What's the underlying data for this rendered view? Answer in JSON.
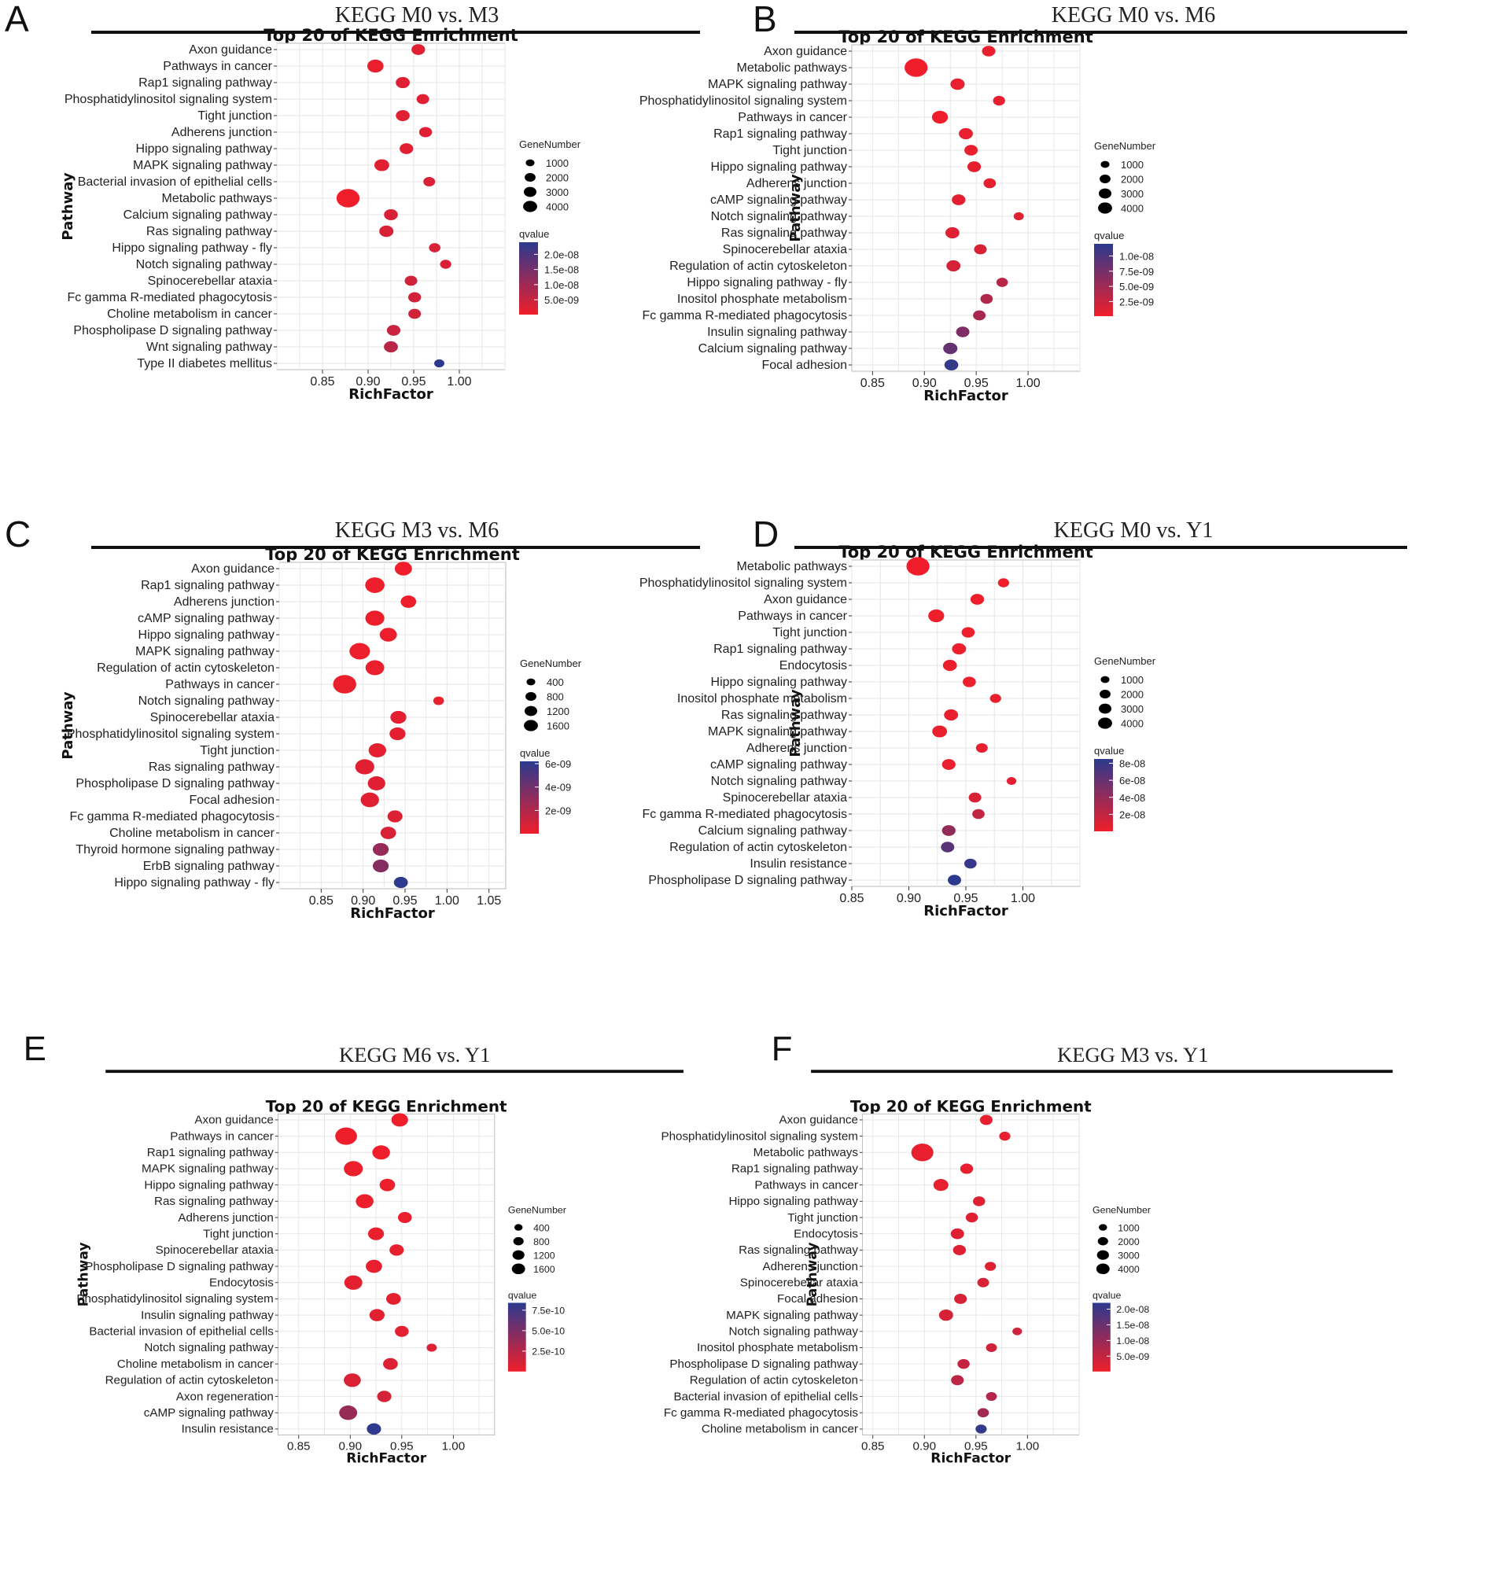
{
  "colors": {
    "low_q": "#f01e2a",
    "high_q": "#2b3a8f",
    "grid": "#e6e6e6",
    "rule": "#111111"
  },
  "common": {
    "pathway_label": "Pathway",
    "x_label": "RichFactor",
    "size_legend_title": "GeneNumber",
    "color_legend_title": "qvalue"
  },
  "chart_data": [
    {
      "panel": "A",
      "type": "scatter",
      "heading": "KEGG  M0 vs. M3",
      "title": "Top 20 of KEGG Enrichment",
      "xlabel": "RichFactor",
      "ylabel": "Pathway",
      "xlim": [
        0.8,
        1.05
      ],
      "xticks": [
        "0.85",
        "0.90",
        "0.95",
        "1.00"
      ],
      "xtick_values": [
        0.85,
        0.9,
        0.95,
        1.0
      ],
      "size_legend": {
        "labels": [
          "1000",
          "2000",
          "3000",
          "4000"
        ],
        "values": [
          1000,
          2000,
          3000,
          4000
        ]
      },
      "color_legend": {
        "labels": [
          "2.0e-08",
          "1.5e-08",
          "1.0e-08",
          "5.0e-09"
        ],
        "values": [
          2e-08,
          1.5e-08,
          1e-08,
          5e-09
        ],
        "min": 1e-10,
        "max": 2.4e-08
      },
      "pathways": [
        "Axon guidance",
        "Pathways in cancer",
        "Rap1 signaling pathway",
        "Phosphatidylinositol signaling system",
        "Tight junction",
        "Adherens junction",
        "Hippo signaling pathway",
        "MAPK signaling pathway",
        "Bacterial invasion of epithelial cells",
        "Metabolic pathways",
        "Calcium signaling pathway",
        "Ras signaling pathway",
        "Hippo signaling pathway - fly",
        "Notch signaling pathway",
        "Spinocerebellar ataxia",
        "Fc gamma R-mediated phagocytosis",
        "Choline metabolism in cancer",
        "Phospholipase D signaling pathway",
        "Wnt signaling pathway",
        "Type II diabetes mellitus"
      ],
      "rich_factor": [
        0.955,
        0.908,
        0.938,
        0.96,
        0.938,
        0.963,
        0.942,
        0.915,
        0.967,
        0.878,
        0.925,
        0.92,
        0.973,
        0.985,
        0.947,
        0.951,
        0.951,
        0.928,
        0.925,
        0.978
      ],
      "gene_number": [
        900,
        1600,
        1000,
        700,
        950,
        750,
        900,
        1200,
        550,
        4200,
        950,
        1050,
        500,
        450,
        700,
        750,
        700,
        900,
        1000,
        300
      ],
      "qvalue": [
        2e-09,
        1e-09,
        2e-09,
        2e-09,
        2e-09,
        2e-09,
        2e-09,
        2e-09,
        3e-09,
        1e-10,
        3e-09,
        3e-09,
        3e-09,
        3e-09,
        4e-09,
        4e-09,
        4e-09,
        5e-09,
        7e-09,
        2.4e-08
      ]
    },
    {
      "panel": "B",
      "type": "scatter",
      "heading": "KEGG  M0 vs. M6",
      "title": "Top 20 of KEGG Enrichment",
      "xlabel": "RichFactor",
      "ylabel": "Pathway",
      "xlim": [
        0.83,
        1.05
      ],
      "xticks": [
        "0.85",
        "0.90",
        "0.95",
        "1.00"
      ],
      "xtick_values": [
        0.85,
        0.9,
        0.95,
        1.0
      ],
      "size_legend": {
        "labels": [
          "1000",
          "2000",
          "3000",
          "4000"
        ],
        "values": [
          1000,
          2000,
          3000,
          4000
        ]
      },
      "color_legend": {
        "labels": [
          "1.0e-08",
          "7.5e-09",
          "5.0e-09",
          "2.5e-09"
        ],
        "values": [
          1e-08,
          7.5e-09,
          5e-09,
          2.5e-09
        ],
        "min": 1e-10,
        "max": 1.2e-08
      },
      "pathways": [
        "Axon guidance",
        "Metabolic pathways",
        "MAPK signaling pathway",
        "Phosphatidylinositol signaling system",
        "Pathways in cancer",
        "Rap1 signaling pathway",
        "Tight junction",
        "Hippo signaling pathway",
        "Adherens junction",
        "cAMP signaling pathway",
        "Notch signaling pathway",
        "Ras signaling pathway",
        "Spinocerebellar ataxia",
        "Regulation of actin cytoskeleton",
        "Hippo signaling pathway - fly",
        "Inositol phosphate metabolism",
        "Fc gamma R-mediated phagocytosis",
        "Insulin signaling pathway",
        "Calcium signaling pathway",
        "Focal adhesion"
      ],
      "rich_factor": [
        0.962,
        0.892,
        0.932,
        0.972,
        0.915,
        0.94,
        0.945,
        0.948,
        0.963,
        0.933,
        0.991,
        0.927,
        0.954,
        0.928,
        0.975,
        0.96,
        0.953,
        0.937,
        0.925,
        0.926
      ],
      "gene_number": [
        850,
        4200,
        1050,
        600,
        1500,
        1000,
        850,
        900,
        650,
        900,
        300,
        1000,
        700,
        1000,
        500,
        650,
        700,
        850,
        1050,
        950
      ],
      "qvalue": [
        5e-10,
        1e-10,
        6e-10,
        6e-10,
        1e-10,
        6e-10,
        6e-10,
        8e-10,
        8e-10,
        9e-10,
        1.2e-09,
        1.2e-09,
        1.5e-09,
        1.8e-09,
        3.5e-09,
        4e-09,
        4.5e-09,
        7e-09,
        8.5e-09,
        1.15e-08
      ]
    },
    {
      "panel": "C",
      "type": "scatter",
      "heading": "KEGG  M3 vs. M6",
      "title": "Top 20 of KEGG Enrichment",
      "xlabel": "RichFactor",
      "ylabel": "Pathway",
      "xlim": [
        0.8,
        1.07
      ],
      "xticks": [
        "0.85",
        "0.90",
        "0.95",
        "1.00",
        "1.05"
      ],
      "xtick_values": [
        0.85,
        0.9,
        0.95,
        1.0,
        1.05
      ],
      "size_legend": {
        "labels": [
          "400",
          "800",
          "1200",
          "1600"
        ],
        "values": [
          400,
          800,
          1200,
          1600
        ]
      },
      "color_legend": {
        "labels": [
          "6e-09",
          "4e-09",
          "2e-09"
        ],
        "values": [
          6e-09,
          4e-09,
          2e-09
        ],
        "min": 1e-11,
        "max": 6.2e-09
      },
      "pathways": [
        "Axon guidance",
        "Rap1 signaling pathway",
        "Adherens junction",
        "cAMP signaling pathway",
        "Hippo signaling pathway",
        "MAPK signaling pathway",
        "Regulation of actin cytoskeleton",
        "Pathways in cancer",
        "Notch signaling pathway",
        "Spinocerebellar ataxia",
        "Phosphatidylinositol signaling system",
        "Tight junction",
        "Ras signaling pathway",
        "Phospholipase D signaling pathway",
        "Focal adhesion",
        "Fc gamma R-mediated phagocytosis",
        "Choline metabolism in cancer",
        "Thyroid hormone signaling pathway",
        "ErbB signaling pathway",
        "Hippo signaling pathway - fly"
      ],
      "rich_factor": [
        0.948,
        0.914,
        0.954,
        0.914,
        0.93,
        0.896,
        0.914,
        0.878,
        0.99,
        0.942,
        0.941,
        0.917,
        0.902,
        0.916,
        0.908,
        0.938,
        0.93,
        0.921,
        0.921,
        0.945
      ],
      "gene_number": [
        750,
        1050,
        550,
        1000,
        750,
        1250,
        950,
        1700,
        150,
        600,
        600,
        800,
        1000,
        800,
        900,
        500,
        550,
        600,
        600,
        400
      ],
      "qvalue": [
        3e-11,
        5e-11,
        1e-10,
        1e-10,
        1e-10,
        1e-10,
        2e-10,
        2e-10,
        3e-10,
        4e-10,
        4e-10,
        4e-10,
        5e-10,
        5e-10,
        5e-10,
        6e-10,
        8e-10,
        2.8e-09,
        3.4e-09,
        6.1e-09
      ]
    },
    {
      "panel": "D",
      "type": "scatter",
      "heading": "KEGG  M0 vs. Y1",
      "title": "Top 20 of KEGG Enrichment",
      "xlabel": "RichFactor",
      "ylabel": "Pathway",
      "xlim": [
        0.85,
        1.05
      ],
      "xticks": [
        "0.85",
        "0.90",
        "0.95",
        "1.00"
      ],
      "xtick_values": [
        0.85,
        0.9,
        0.95,
        1.0
      ],
      "size_legend": {
        "labels": [
          "1000",
          "2000",
          "3000",
          "4000"
        ],
        "values": [
          1000,
          2000,
          3000,
          4000
        ]
      },
      "color_legend": {
        "labels": [
          "8e-08",
          "6e-08",
          "4e-08",
          "2e-08"
        ],
        "values": [
          8e-08,
          6e-08,
          4e-08,
          2e-08
        ],
        "min": 1e-10,
        "max": 8.5e-08
      },
      "pathways": [
        "Metabolic pathways",
        "Phosphatidylinositol signaling system",
        "Axon guidance",
        "Pathways in cancer",
        "Tight junction",
        "Rap1 signaling pathway",
        "Endocytosis",
        "Hippo signaling pathway",
        "Inositol phosphate metabolism",
        "Ras signaling pathway",
        "MAPK signaling pathway",
        "Adherens junction",
        "cAMP signaling pathway",
        "Notch signaling pathway",
        "Spinocerebellar ataxia",
        "Fc gamma R-mediated phagocytosis",
        "Calcium signaling pathway",
        "Regulation of actin cytoskeleton",
        "Insulin resistance",
        "Phospholipase D signaling pathway"
      ],
      "rich_factor": [
        0.908,
        0.983,
        0.96,
        0.924,
        0.952,
        0.944,
        0.936,
        0.953,
        0.976,
        0.937,
        0.927,
        0.964,
        0.935,
        0.99,
        0.958,
        0.961,
        0.935,
        0.934,
        0.954,
        0.94
      ],
      "gene_number": [
        4200,
        450,
        900,
        1500,
        800,
        1000,
        1000,
        800,
        450,
        1000,
        1200,
        550,
        900,
        250,
        700,
        650,
        900,
        850,
        650,
        850
      ],
      "qvalue": [
        5e-10,
        1e-09,
        1e-09,
        1e-09,
        1e-09,
        2e-09,
        2e-09,
        2e-09,
        3e-09,
        3e-09,
        3e-09,
        4e-09,
        4e-09,
        6e-09,
        1e-08,
        2e-08,
        4e-08,
        6.5e-08,
        8e-08,
        8.5e-08
      ]
    },
    {
      "panel": "E",
      "type": "scatter",
      "heading": "KEGG  M6 vs. Y1",
      "title": "Top 20 of KEGG Enrichment",
      "xlabel": "RichFactor",
      "ylabel": "Pathway",
      "xlim": [
        0.83,
        1.04
      ],
      "xticks": [
        "0.85",
        "0.90",
        "0.95",
        "1.00"
      ],
      "xtick_values": [
        0.85,
        0.9,
        0.95,
        1.0
      ],
      "size_legend": {
        "labels": [
          "400",
          "800",
          "1200",
          "1600"
        ],
        "values": [
          400,
          800,
          1200,
          1600
        ]
      },
      "color_legend": {
        "labels": [
          "7.5e-10",
          "5.0e-10",
          "2.5e-10"
        ],
        "values": [
          7.5e-10,
          5e-10,
          2.5e-10
        ],
        "min": 1e-12,
        "max": 8.4e-10
      },
      "pathways": [
        "Axon guidance",
        "Pathways in cancer",
        "Rap1 signaling pathway",
        "MAPK signaling pathway",
        "Hippo signaling pathway",
        "Ras signaling pathway",
        "Adherens junction",
        "Tight junction",
        "Spinocerebellar ataxia",
        "Phospholipase D signaling pathway",
        "Endocytosis",
        "Phosphatidylinositol signaling system",
        "Insulin signaling pathway",
        "Bacterial invasion of epithelial cells",
        "Notch signaling pathway",
        "Choline metabolism in cancer",
        "Regulation of actin cytoskeleton",
        "Axon regeneration",
        "cAMP signaling pathway",
        "Insulin resistance"
      ],
      "rich_factor": [
        0.948,
        0.896,
        0.93,
        0.903,
        0.936,
        0.914,
        0.953,
        0.925,
        0.945,
        0.923,
        0.903,
        0.942,
        0.926,
        0.95,
        0.979,
        0.939,
        0.902,
        0.933,
        0.898,
        0.923
      ],
      "gene_number": [
        800,
        1650,
        950,
        1150,
        650,
        950,
        450,
        700,
        500,
        750,
        1000,
        550,
        600,
        450,
        150,
        550,
        850,
        500,
        1000,
        500
      ],
      "qvalue": [
        1e-11,
        1e-11,
        1e-11,
        2e-11,
        2e-11,
        2e-11,
        3e-11,
        3e-11,
        4e-11,
        4e-11,
        5e-11,
        5e-11,
        6e-11,
        6e-11,
        8e-11,
        8e-11,
        1e-10,
        1.2e-10,
        3.8e-10,
        8.2e-10
      ]
    },
    {
      "panel": "F",
      "type": "scatter",
      "heading": "KEGG  M3 vs. Y1",
      "title": "Top 20 of KEGG Enrichment",
      "xlabel": "RichFactor",
      "ylabel": "Pathway",
      "xlim": [
        0.84,
        1.05
      ],
      "xticks": [
        "0.85",
        "0.90",
        "0.95",
        "1.00"
      ],
      "xtick_values": [
        0.85,
        0.9,
        0.95,
        1.0
      ],
      "size_legend": {
        "labels": [
          "1000",
          "2000",
          "3000",
          "4000"
        ],
        "values": [
          1000,
          2000,
          3000,
          4000
        ]
      },
      "color_legend": {
        "labels": [
          "2.0e-08",
          "1.5e-08",
          "1.0e-08",
          "5.0e-09"
        ],
        "values": [
          2e-08,
          1.5e-08,
          1e-08,
          5e-09
        ],
        "min": 1e-10,
        "max": 2.2e-08
      },
      "pathways": [
        "Axon guidance",
        "Phosphatidylinositol signaling system",
        "Metabolic pathways",
        "Rap1 signaling pathway",
        "Pathways in cancer",
        "Hippo signaling pathway",
        "Tight junction",
        "Endocytosis",
        "Ras signaling pathway",
        "Adherens junction",
        "Spinocerebellar ataxia",
        "Focal adhesion",
        "MAPK signaling pathway",
        "Notch signaling pathway",
        "Inositol phosphate metabolism",
        "Phospholipase D signaling pathway",
        "Regulation of actin cytoskeleton",
        "Bacterial invasion of epithelial cells",
        "Fc gamma R-mediated phagocytosis",
        "Choline metabolism in cancer"
      ],
      "rich_factor": [
        0.96,
        0.978,
        0.898,
        0.941,
        0.916,
        0.953,
        0.946,
        0.932,
        0.934,
        0.964,
        0.957,
        0.935,
        0.921,
        0.99,
        0.965,
        0.938,
        0.932,
        0.965,
        0.957,
        0.955
      ],
      "gene_number": [
        850,
        550,
        4300,
        900,
        1450,
        750,
        750,
        1000,
        900,
        550,
        650,
        850,
        1200,
        300,
        500,
        750,
        850,
        500,
        600,
        550
      ],
      "qvalue": [
        1e-09,
        1e-09,
        1e-09,
        1e-09,
        1e-09,
        2e-09,
        2e-09,
        2e-09,
        2e-09,
        2e-09,
        3e-09,
        3e-09,
        3e-09,
        4e-09,
        4e-09,
        5e-09,
        6e-09,
        7e-09,
        9e-09,
        2.1e-08
      ]
    }
  ]
}
